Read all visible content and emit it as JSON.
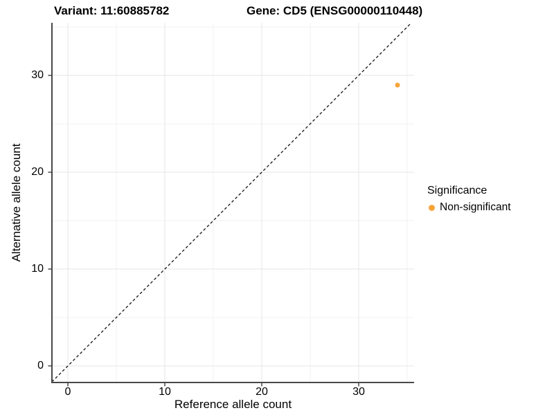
{
  "header": {
    "title_left": "Variant: 11:60885782",
    "title_right": "Gene: CD5 (ENSG00000110448)"
  },
  "legend": {
    "title": "Significance",
    "items": [
      {
        "label": "Non-significant",
        "color": "#FAA43A"
      }
    ]
  },
  "chart_data": {
    "type": "scatter",
    "title_left": "Variant: 11:60885782",
    "title_right": "Gene: CD5 (ENSG00000110448)",
    "xlabel": "Reference allele count",
    "ylabel": "Alternative allele count",
    "x_ticks": [
      0,
      10,
      20,
      30
    ],
    "y_ticks": [
      0,
      10,
      20,
      30
    ],
    "x_minor_gridlines": [
      5,
      15,
      25,
      35
    ],
    "y_minor_gridlines": [
      5,
      15,
      25,
      35
    ],
    "xlim": [
      -1.65,
      35.71
    ],
    "ylim": [
      -1.71,
      35.43
    ],
    "grid": "major+minor",
    "legend_position": "right",
    "series": [
      {
        "name": "Non-significant",
        "color": "#FAA43A",
        "points": [
          {
            "x": 34,
            "y": 29
          }
        ]
      }
    ],
    "reference_line": {
      "kind": "identity",
      "equation": "y = x",
      "style": "dashed",
      "color": "#111111"
    }
  },
  "style": {
    "grid_major_color": "#E6E6E6",
    "grid_minor_color": "#F2F2F2",
    "axis_color": "#474747",
    "tick_color": "#474747",
    "point_radius": 3.5
  }
}
